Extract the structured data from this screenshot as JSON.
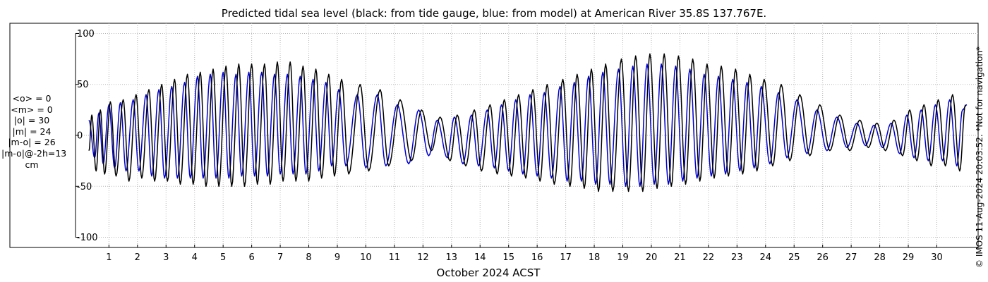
{
  "title": "Predicted tidal sea level (black: from tide gauge, blue: from model) at American River 35.8S 137.767E.",
  "stats": [
    "<o> = 0",
    "<m> = 0",
    "|o| = 30",
    "|m| = 24",
    "|m-o| = 26",
    "|m-o|@-2h=13",
    "cm"
  ],
  "credit": "© IMOS 11-Aug-2024 20:03:52. *Not for navigation*",
  "colors": {
    "observed": "#000000",
    "model": "#0000cc",
    "grid": "#b8b8b8"
  },
  "chart_data": {
    "type": "line",
    "xlabel": "October 2024 ACST",
    "ylabel": "",
    "xlim": [
      0.2,
      31.1
    ],
    "ylim": [
      -110,
      110
    ],
    "yticks": [
      100,
      50,
      0,
      -50,
      -100
    ],
    "xticks": [
      1,
      2,
      3,
      4,
      5,
      6,
      7,
      8,
      9,
      10,
      11,
      12,
      13,
      14,
      15,
      16,
      17,
      18,
      19,
      20,
      21,
      22,
      23,
      24,
      25,
      26,
      27,
      28,
      29,
      30
    ],
    "grid": true,
    "series": [
      {
        "name": "from tide gauge",
        "color": "black",
        "points": [
          [
            0.3,
            -15
          ],
          [
            0.4,
            20
          ],
          [
            0.55,
            -35
          ],
          [
            0.7,
            25
          ],
          [
            0.85,
            -38
          ],
          [
            1.05,
            33
          ],
          [
            1.25,
            -40
          ],
          [
            1.5,
            35
          ],
          [
            1.7,
            -45
          ],
          [
            1.95,
            40
          ],
          [
            2.15,
            -42
          ],
          [
            2.4,
            45
          ],
          [
            2.6,
            -45
          ],
          [
            2.85,
            50
          ],
          [
            3.05,
            -45
          ],
          [
            3.3,
            55
          ],
          [
            3.5,
            -48
          ],
          [
            3.75,
            60
          ],
          [
            3.95,
            -48
          ],
          [
            4.2,
            62
          ],
          [
            4.4,
            -50
          ],
          [
            4.65,
            65
          ],
          [
            4.85,
            -50
          ],
          [
            5.1,
            68
          ],
          [
            5.3,
            -50
          ],
          [
            5.55,
            70
          ],
          [
            5.75,
            -50
          ],
          [
            6.0,
            70
          ],
          [
            6.2,
            -48
          ],
          [
            6.45,
            70
          ],
          [
            6.65,
            -48
          ],
          [
            6.9,
            72
          ],
          [
            7.1,
            -45
          ],
          [
            7.35,
            72
          ],
          [
            7.55,
            -45
          ],
          [
            7.8,
            68
          ],
          [
            8.0,
            -45
          ],
          [
            8.25,
            65
          ],
          [
            8.45,
            -42
          ],
          [
            8.7,
            60
          ],
          [
            8.9,
            -40
          ],
          [
            9.15,
            55
          ],
          [
            9.4,
            -38
          ],
          [
            9.8,
            50
          ],
          [
            10.1,
            -35
          ],
          [
            10.5,
            45
          ],
          [
            10.8,
            -30
          ],
          [
            11.2,
            35
          ],
          [
            11.6,
            -25
          ],
          [
            11.95,
            25
          ],
          [
            12.3,
            -15
          ],
          [
            12.6,
            18
          ],
          [
            12.95,
            -25
          ],
          [
            13.2,
            20
          ],
          [
            13.5,
            -30
          ],
          [
            13.8,
            25
          ],
          [
            14.05,
            -35
          ],
          [
            14.35,
            30
          ],
          [
            14.6,
            -38
          ],
          [
            14.85,
            35
          ],
          [
            15.1,
            -40
          ],
          [
            15.35,
            40
          ],
          [
            15.6,
            -42
          ],
          [
            15.85,
            45
          ],
          [
            16.1,
            -45
          ],
          [
            16.35,
            50
          ],
          [
            16.6,
            -48
          ],
          [
            16.9,
            55
          ],
          [
            17.15,
            -50
          ],
          [
            17.4,
            60
          ],
          [
            17.65,
            -52
          ],
          [
            17.9,
            65
          ],
          [
            18.15,
            -55
          ],
          [
            18.4,
            70
          ],
          [
            18.65,
            -55
          ],
          [
            18.95,
            75
          ],
          [
            19.2,
            -55
          ],
          [
            19.45,
            78
          ],
          [
            19.7,
            -55
          ],
          [
            19.95,
            80
          ],
          [
            20.2,
            -52
          ],
          [
            20.45,
            80
          ],
          [
            20.7,
            -50
          ],
          [
            20.95,
            78
          ],
          [
            21.2,
            -48
          ],
          [
            21.45,
            75
          ],
          [
            21.7,
            -45
          ],
          [
            21.95,
            70
          ],
          [
            22.2,
            -42
          ],
          [
            22.45,
            68
          ],
          [
            22.7,
            -40
          ],
          [
            22.95,
            65
          ],
          [
            23.2,
            -38
          ],
          [
            23.45,
            60
          ],
          [
            23.7,
            -35
          ],
          [
            23.95,
            55
          ],
          [
            24.25,
            -30
          ],
          [
            24.55,
            50
          ],
          [
            24.85,
            -25
          ],
          [
            25.2,
            40
          ],
          [
            25.55,
            -20
          ],
          [
            25.9,
            30
          ],
          [
            26.25,
            -15
          ],
          [
            26.6,
            20
          ],
          [
            26.95,
            -15
          ],
          [
            27.3,
            15
          ],
          [
            27.6,
            -12
          ],
          [
            27.9,
            12
          ],
          [
            28.2,
            -15
          ],
          [
            28.5,
            15
          ],
          [
            28.8,
            -20
          ],
          [
            29.05,
            25
          ],
          [
            29.3,
            -25
          ],
          [
            29.55,
            30
          ],
          [
            29.8,
            -30
          ],
          [
            30.05,
            35
          ],
          [
            30.3,
            -30
          ],
          [
            30.55,
            40
          ],
          [
            30.8,
            -35
          ],
          [
            31.0,
            30
          ]
        ]
      },
      {
        "name": "from model",
        "color": "blue",
        "points": [
          [
            0.3,
            15
          ],
          [
            0.5,
            -22
          ],
          [
            0.65,
            22
          ],
          [
            0.8,
            -28
          ],
          [
            1.0,
            30
          ],
          [
            1.2,
            -32
          ],
          [
            1.4,
            32
          ],
          [
            1.6,
            -35
          ],
          [
            1.85,
            35
          ],
          [
            2.05,
            -35
          ],
          [
            2.3,
            40
          ],
          [
            2.5,
            -40
          ],
          [
            2.75,
            45
          ],
          [
            2.95,
            -42
          ],
          [
            3.2,
            48
          ],
          [
            3.4,
            -42
          ],
          [
            3.65,
            52
          ],
          [
            3.85,
            -42
          ],
          [
            4.1,
            58
          ],
          [
            4.3,
            -42
          ],
          [
            4.55,
            60
          ],
          [
            4.75,
            -42
          ],
          [
            5.0,
            62
          ],
          [
            5.2,
            -42
          ],
          [
            5.45,
            60
          ],
          [
            5.65,
            -40
          ],
          [
            5.9,
            62
          ],
          [
            6.1,
            -40
          ],
          [
            6.35,
            62
          ],
          [
            6.55,
            -40
          ],
          [
            6.8,
            60
          ],
          [
            7.0,
            -38
          ],
          [
            7.25,
            60
          ],
          [
            7.45,
            -38
          ],
          [
            7.7,
            58
          ],
          [
            7.9,
            -38
          ],
          [
            8.15,
            55
          ],
          [
            8.35,
            -35
          ],
          [
            8.6,
            52
          ],
          [
            8.8,
            -30
          ],
          [
            9.05,
            45
          ],
          [
            9.3,
            -30
          ],
          [
            9.7,
            40
          ],
          [
            10.0,
            -32
          ],
          [
            10.4,
            40
          ],
          [
            10.7,
            -30
          ],
          [
            11.1,
            30
          ],
          [
            11.5,
            -28
          ],
          [
            11.85,
            25
          ],
          [
            12.2,
            -20
          ],
          [
            12.5,
            15
          ],
          [
            12.85,
            -22
          ],
          [
            13.1,
            18
          ],
          [
            13.4,
            -28
          ],
          [
            13.7,
            20
          ],
          [
            13.95,
            -30
          ],
          [
            14.25,
            25
          ],
          [
            14.5,
            -32
          ],
          [
            14.75,
            30
          ],
          [
            15.0,
            -35
          ],
          [
            15.25,
            35
          ],
          [
            15.5,
            -38
          ],
          [
            15.75,
            40
          ],
          [
            16.0,
            -40
          ],
          [
            16.25,
            42
          ],
          [
            16.5,
            -42
          ],
          [
            16.8,
            48
          ],
          [
            17.05,
            -45
          ],
          [
            17.3,
            52
          ],
          [
            17.55,
            -45
          ],
          [
            17.8,
            58
          ],
          [
            18.05,
            -48
          ],
          [
            18.3,
            62
          ],
          [
            18.55,
            -48
          ],
          [
            18.85,
            65
          ],
          [
            19.1,
            -50
          ],
          [
            19.35,
            68
          ],
          [
            19.6,
            -50
          ],
          [
            19.85,
            70
          ],
          [
            20.1,
            -48
          ],
          [
            20.35,
            70
          ],
          [
            20.6,
            -48
          ],
          [
            20.85,
            68
          ],
          [
            21.1,
            -45
          ],
          [
            21.35,
            65
          ],
          [
            21.6,
            -42
          ],
          [
            21.85,
            60
          ],
          [
            22.1,
            -40
          ],
          [
            22.35,
            58
          ],
          [
            22.6,
            -38
          ],
          [
            22.85,
            55
          ],
          [
            23.1,
            -35
          ],
          [
            23.35,
            52
          ],
          [
            23.6,
            -32
          ],
          [
            23.85,
            48
          ],
          [
            24.15,
            -28
          ],
          [
            24.45,
            42
          ],
          [
            24.75,
            -22
          ],
          [
            25.1,
            35
          ],
          [
            25.45,
            -18
          ],
          [
            25.8,
            25
          ],
          [
            26.15,
            -15
          ],
          [
            26.5,
            18
          ],
          [
            26.85,
            -12
          ],
          [
            27.2,
            12
          ],
          [
            27.5,
            -10
          ],
          [
            27.8,
            10
          ],
          [
            28.1,
            -12
          ],
          [
            28.4,
            12
          ],
          [
            28.7,
            -18
          ],
          [
            28.95,
            20
          ],
          [
            29.2,
            -22
          ],
          [
            29.45,
            25
          ],
          [
            29.7,
            -25
          ],
          [
            29.95,
            30
          ],
          [
            30.2,
            -25
          ],
          [
            30.45,
            35
          ],
          [
            30.7,
            -30
          ],
          [
            30.9,
            25
          ],
          [
            31.05,
            30
          ]
        ]
      }
    ]
  }
}
